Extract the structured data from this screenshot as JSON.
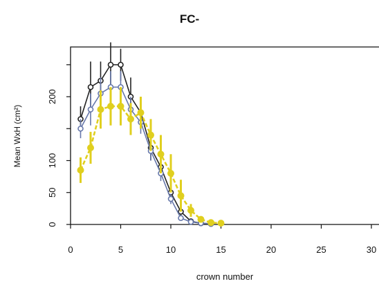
{
  "chart_data": {
    "type": "line",
    "title": "FC-",
    "xlabel": "crown number",
    "ylabel": "Mean WxH (cm²)",
    "xlim": [
      0,
      30
    ],
    "ylim": [
      0,
      270
    ],
    "xticks": [
      0,
      5,
      10,
      15,
      20,
      25,
      30
    ],
    "xtick_labels": [
      "0",
      "5",
      "10",
      "15",
      "20",
      "25",
      "30"
    ],
    "yticks": [
      0,
      50,
      100,
      200
    ],
    "ytick_labels": [
      "0",
      "50",
      "100",
      "200"
    ],
    "grid": false,
    "legend": "none",
    "series": [
      {
        "color": "#222222",
        "marker": "circle",
        "x": [
          1,
          2,
          3,
          4,
          5,
          6,
          7,
          8,
          9,
          10,
          11,
          12,
          13,
          14
        ],
        "y": [
          165,
          215,
          225,
          250,
          250,
          200,
          175,
          120,
          90,
          50,
          20,
          5,
          2,
          1
        ],
        "err": [
          20,
          40,
          30,
          35,
          25,
          30,
          25,
          20,
          15,
          12,
          6,
          3,
          1,
          0.5
        ]
      },
      {
        "color": "#6677aa",
        "marker": "circle",
        "x": [
          1,
          2,
          3,
          4,
          5,
          6,
          7,
          8,
          9,
          10,
          11,
          12,
          13,
          14
        ],
        "y": [
          150,
          180,
          205,
          215,
          215,
          180,
          160,
          115,
          80,
          40,
          10,
          4,
          2,
          1
        ],
        "err": [
          15,
          25,
          25,
          25,
          25,
          20,
          18,
          15,
          12,
          8,
          4,
          2,
          1,
          0.5
        ]
      },
      {
        "color": "#e0cf1f",
        "marker": "circle",
        "x": [
          1,
          2,
          3,
          4,
          5,
          6,
          7,
          8,
          9,
          10,
          11,
          12,
          13,
          14,
          15
        ],
        "y": [
          85,
          120,
          180,
          185,
          185,
          165,
          175,
          140,
          110,
          80,
          45,
          22,
          8,
          3,
          2
        ],
        "err": [
          20,
          25,
          30,
          30,
          30,
          25,
          25,
          25,
          30,
          30,
          25,
          10,
          5,
          2,
          1
        ]
      }
    ]
  }
}
